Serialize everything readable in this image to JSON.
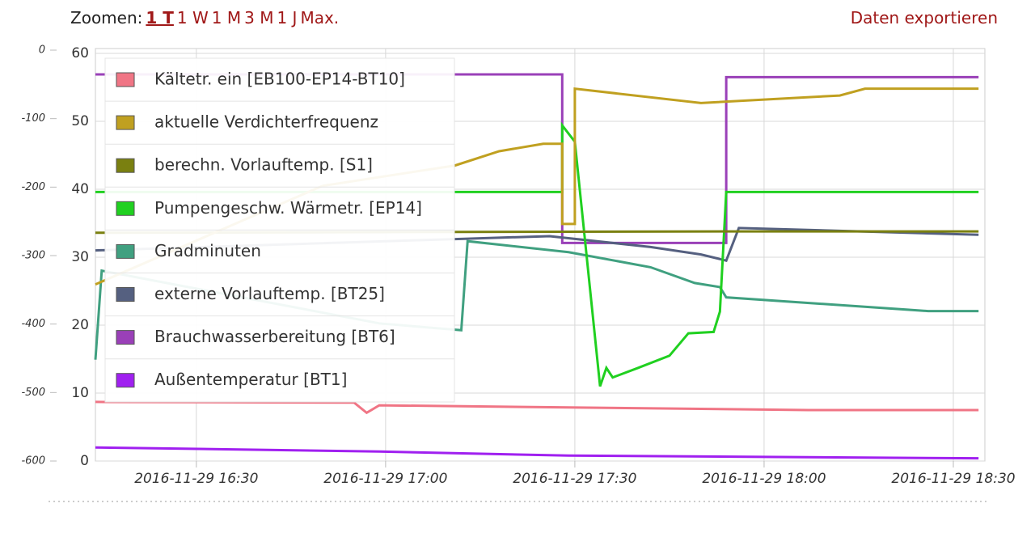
{
  "header": {
    "zoom_label": "Zoomen:",
    "zoom_options": [
      "1 T",
      "1 W",
      "1 M",
      "3 M",
      "1 J",
      "Max."
    ],
    "export": "Daten exportieren"
  },
  "chart_data": {
    "type": "line",
    "grid": true,
    "xlim": [
      "2016-11-29 16:14",
      "2016-11-29 18:35"
    ],
    "xticks": [
      "2016-11-29 16:30",
      "2016-11-29 17:00",
      "2016-11-29 17:30",
      "2016-11-29 18:00",
      "2016-11-29 18:30"
    ],
    "ylim": [
      0,
      60
    ],
    "yticks": [
      0,
      10,
      20,
      30,
      40,
      50,
      60
    ],
    "y2lim": [
      -600,
      0
    ],
    "y2ticks": [
      -600,
      -500,
      -400,
      -300,
      -200,
      -100,
      0
    ],
    "series": [
      {
        "name": "Kältetr. ein [EB100-EP14-BT10]",
        "color": "#f07585",
        "x": [
          "2016-11-29 16:14",
          "2016-11-29 16:55",
          "2016-11-29 16:57",
          "2016-11-29 16:59",
          "2016-11-29 18:07",
          "2016-11-29 18:34"
        ],
        "values": [
          8.7,
          8.6,
          7.1,
          8.2,
          7.5,
          7.5
        ]
      },
      {
        "name": "aktuelle Verdichterfrequenz",
        "color": "#c0a020",
        "x": [
          "2016-11-29 16:14",
          "2016-11-29 16:50",
          "2016-11-29 17:11",
          "2016-11-29 17:18",
          "2016-11-29 17:25",
          "2016-11-29 17:28",
          "2016-11-29 17:28",
          "2016-11-29 17:30",
          "2016-11-29 17:30",
          "2016-11-29 17:50",
          "2016-11-29 18:12",
          "2016-11-29 18:16",
          "2016-11-29 18:34"
        ],
        "values": [
          26,
          40.5,
          43.5,
          45.6,
          46.7,
          46.7,
          34.9,
          34.9,
          54.8,
          52.7,
          53.8,
          54.8,
          54.8
        ]
      },
      {
        "name": "berechn. Vorlauftemp. [S1]",
        "color": "#7a8010",
        "x": [
          "2016-11-29 16:14",
          "2016-11-29 17:54",
          "2016-11-29 18:34"
        ],
        "values": [
          33.6,
          33.8,
          33.8
        ]
      },
      {
        "name": "Pumpengeschw. Wärmetr. [EP14]",
        "color": "#20d020",
        "x": [
          "2016-11-29 16:14",
          "2016-11-29 17:28",
          "2016-11-29 17:28",
          "2016-11-29 17:30",
          "2016-11-29 17:34",
          "2016-11-29 17:35",
          "2016-11-29 17:36",
          "2016-11-29 17:40",
          "2016-11-29 17:45",
          "2016-11-29 17:48",
          "2016-11-29 17:52",
          "2016-11-29 17:53",
          "2016-11-29 17:54",
          "2016-11-29 18:34"
        ],
        "values": [
          39.6,
          39.6,
          49.4,
          47.0,
          11.0,
          13.7,
          12.3,
          13.7,
          15.5,
          18.8,
          19.0,
          22.0,
          39.6,
          39.6
        ]
      },
      {
        "name": "Gradminuten",
        "color": "#40a080",
        "axis": "y2",
        "x": [
          "2016-11-29 16:14",
          "2016-11-29 16:15",
          "2016-11-29 16:59",
          "2016-11-29 17:12",
          "2016-11-29 17:13",
          "2016-11-29 17:29",
          "2016-11-29 17:42",
          "2016-11-29 17:49",
          "2016-11-29 17:53",
          "2016-11-29 17:54",
          "2016-11-29 18:26",
          "2016-11-29 18:34"
        ],
        "values": [
          -452,
          -322,
          -399,
          -409,
          -279,
          -295,
          -317,
          -340,
          -346,
          -361,
          -381,
          -381
        ]
      },
      {
        "name": "externe Vorlauftemp. [BT25]",
        "color": "#556080",
        "x": [
          "2016-11-29 16:14",
          "2016-11-29 17:12",
          "2016-11-29 17:26",
          "2016-11-29 17:42",
          "2016-11-29 17:50",
          "2016-11-29 17:54",
          "2016-11-29 17:56",
          "2016-11-29 18:34"
        ],
        "values": [
          31.0,
          32.7,
          33.1,
          31.5,
          30.4,
          29.5,
          34.3,
          33.3
        ]
      },
      {
        "name": "Brauchwasserbereitung [BT6]",
        "color": "#9a40b8",
        "x": [
          "2016-11-29 16:14",
          "2016-11-29 17:28",
          "2016-11-29 17:28",
          "2016-11-29 17:54",
          "2016-11-29 17:54",
          "2016-11-29 18:34"
        ],
        "values": [
          56.9,
          56.9,
          32.1,
          32.1,
          56.5,
          56.5
        ]
      },
      {
        "name": "Außentemperatur [BT1]",
        "color": "#a020f0",
        "x": [
          "2016-11-29 16:14",
          "2016-11-29 16:59",
          "2016-11-29 17:29",
          "2016-11-29 18:34"
        ],
        "values": [
          2.0,
          1.4,
          0.8,
          0.4
        ]
      }
    ]
  }
}
